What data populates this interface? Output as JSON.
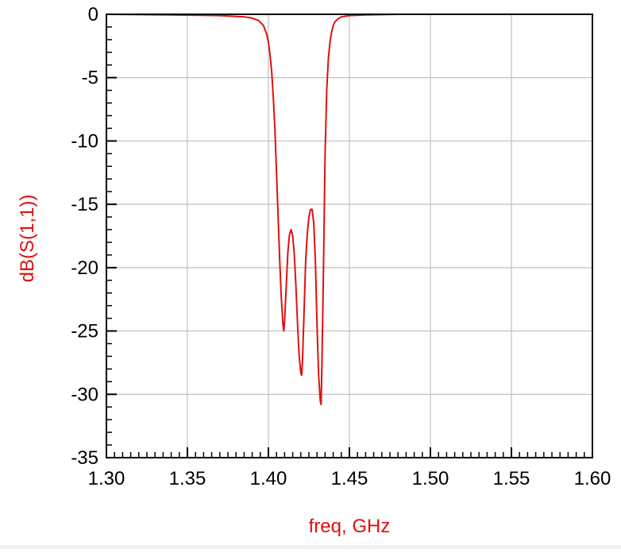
{
  "chart_data": {
    "type": "line",
    "title": "",
    "xlabel": "freq, GHz",
    "ylabel": "dB(S(1,1))",
    "xlim": [
      1.3,
      1.6
    ],
    "ylim": [
      -35,
      0
    ],
    "x_ticks": [
      "1.30",
      "1.35",
      "1.40",
      "1.45",
      "1.50",
      "1.55",
      "1.60"
    ],
    "y_ticks": [
      "0",
      "-5",
      "-10",
      "-15",
      "-20",
      "-25",
      "-30",
      "-35"
    ],
    "x_minor_step": 0.005,
    "y_minor_step": 1,
    "grid": true,
    "colors": {
      "series": "#e01010",
      "ylabel": "#e01010",
      "xlabel": "#e01010",
      "grid": "#c0c0c0",
      "frame": "#000000"
    },
    "series": [
      {
        "x": [
          1.3,
          1.34,
          1.37,
          1.385,
          1.39,
          1.394,
          1.397,
          1.399,
          1.4,
          1.401,
          1.402,
          1.403,
          1.404,
          1.405,
          1.406,
          1.407,
          1.408,
          1.409,
          1.4095,
          1.41,
          1.411,
          1.412,
          1.413,
          1.414,
          1.415,
          1.416,
          1.417,
          1.418,
          1.419,
          1.42,
          1.4205,
          1.421,
          1.422,
          1.423,
          1.424,
          1.425,
          1.426,
          1.427,
          1.428,
          1.429,
          1.43,
          1.431,
          1.432,
          1.4325,
          1.433,
          1.434,
          1.435,
          1.436,
          1.437,
          1.438,
          1.439,
          1.44,
          1.441,
          1.443,
          1.445,
          1.45,
          1.46,
          1.48,
          1.52,
          1.6
        ],
        "y": [
          0.0,
          -0.05,
          -0.1,
          -0.2,
          -0.3,
          -0.5,
          -0.9,
          -1.6,
          -2.2,
          -3.2,
          -4.5,
          -6.5,
          -9.0,
          -12.5,
          -16.0,
          -19.5,
          -22.5,
          -24.5,
          -25.0,
          -24.2,
          -21.5,
          -18.8,
          -17.4,
          -17.0,
          -17.5,
          -19.0,
          -21.5,
          -24.5,
          -27.0,
          -28.3,
          -28.5,
          -27.5,
          -23.5,
          -19.5,
          -17.3,
          -16.0,
          -15.4,
          -15.4,
          -16.5,
          -19.5,
          -24.5,
          -28.5,
          -30.5,
          -30.8,
          -28.0,
          -20.0,
          -11.0,
          -6.0,
          -3.5,
          -2.2,
          -1.4,
          -0.9,
          -0.6,
          -0.35,
          -0.2,
          -0.1,
          -0.05,
          0.0,
          0.0,
          0.0
        ]
      }
    ]
  }
}
